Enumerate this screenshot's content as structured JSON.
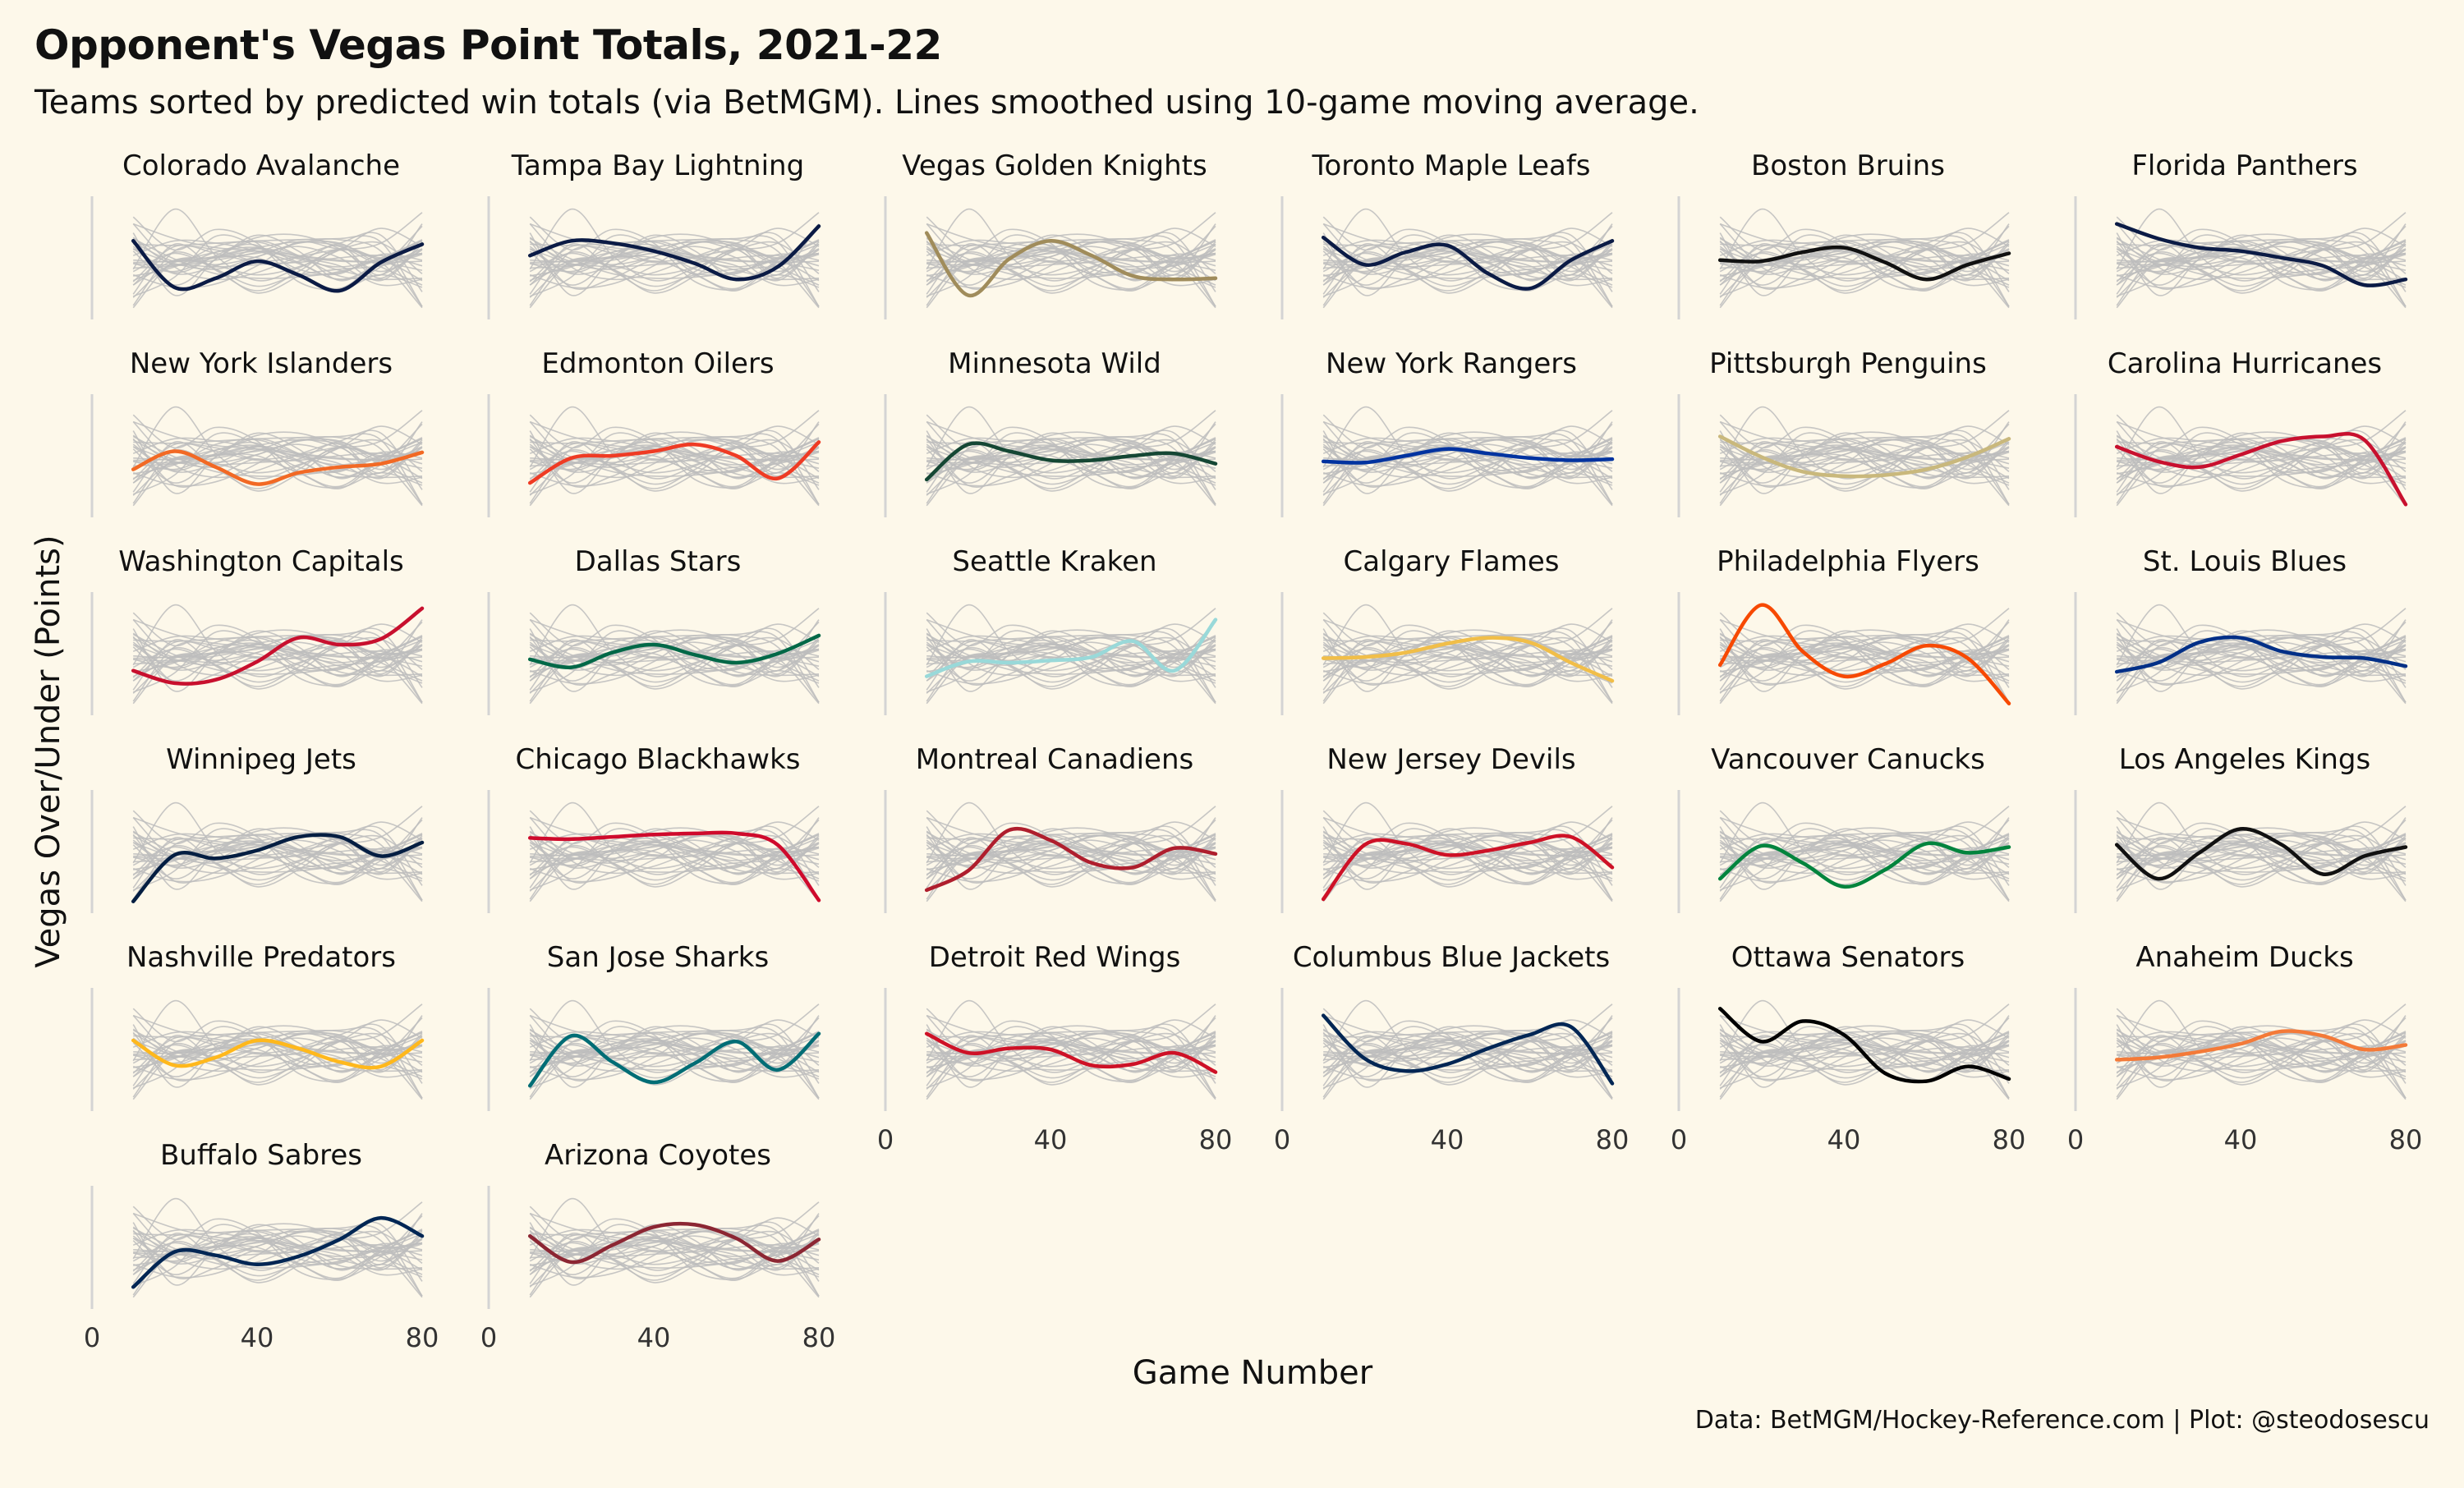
{
  "chart_data": {
    "type": "line",
    "title": "Opponent's Vegas Point Totals, 2021-22",
    "subtitle": "Teams sorted by predicted win totals (via BetMGM). Lines smoothed using 10-game moving average.",
    "xlabel": "Game Number",
    "ylabel": "Vegas Over/Under (Points)",
    "caption": "Data: BetMGM/Hockey-Reference.com | Plot: @steodosescu",
    "xlim": [
      0,
      82
    ],
    "ylim": [
      0,
      10
    ],
    "x_ticks": [
      0,
      40,
      80
    ],
    "x": [
      10,
      20,
      30,
      40,
      50,
      60,
      70,
      80
    ],
    "grid": false,
    "facets": [
      {
        "name": "Colorado Avalanche",
        "color": "#0b1b45",
        "values": [
          6.5,
          2.4,
          3.2,
          4.7,
          3.5,
          2.1,
          4.6,
          6.2
        ]
      },
      {
        "name": "Tampa Bay Lightning",
        "color": "#0b1b45",
        "values": [
          5.2,
          6.5,
          6.3,
          5.6,
          4.5,
          3.1,
          4.2,
          7.8
        ]
      },
      {
        "name": "Vegas Golden Knights",
        "color": "#a08c5b",
        "values": [
          7.2,
          1.7,
          4.9,
          6.5,
          5.2,
          3.4,
          3.1,
          3.2
        ]
      },
      {
        "name": "Toronto Maple Leafs",
        "color": "#0b1b45",
        "values": [
          6.8,
          4.4,
          5.5,
          6.1,
          3.6,
          2.3,
          4.8,
          6.5
        ]
      },
      {
        "name": "Boston Bruins",
        "color": "#111111",
        "values": [
          4.8,
          4.7,
          5.5,
          5.9,
          4.6,
          3.1,
          4.4,
          5.4
        ]
      },
      {
        "name": "Florida Panthers",
        "color": "#0b1b45",
        "values": [
          8.0,
          6.7,
          5.9,
          5.6,
          5.0,
          4.3,
          2.6,
          3.1
        ]
      },
      {
        "name": "New York Islanders",
        "color": "#f26924",
        "values": [
          3.8,
          5.4,
          4.0,
          2.5,
          3.5,
          4.0,
          4.3,
          5.3
        ]
      },
      {
        "name": "Edmonton Oilers",
        "color": "#ef3b24",
        "values": [
          2.6,
          4.8,
          5.0,
          5.4,
          6.0,
          5.0,
          3.0,
          6.2
        ]
      },
      {
        "name": "Minnesota Wild",
        "color": "#154734",
        "values": [
          2.9,
          6.0,
          5.4,
          4.6,
          4.6,
          5.0,
          5.2,
          4.3
        ]
      },
      {
        "name": "New York Rangers",
        "color": "#0033a0",
        "values": [
          4.5,
          4.4,
          5.0,
          5.6,
          5.2,
          4.8,
          4.6,
          4.7
        ]
      },
      {
        "name": "Pittsburgh Penguins",
        "color": "#c9b87c",
        "values": [
          6.7,
          4.9,
          3.6,
          3.2,
          3.3,
          3.8,
          4.9,
          6.5
        ]
      },
      {
        "name": "Carolina Hurricanes",
        "color": "#c8102e",
        "values": [
          5.8,
          4.5,
          4.0,
          5.1,
          6.3,
          6.7,
          6.4,
          0.7
        ]
      },
      {
        "name": "Washington Capitals",
        "color": "#c8102e",
        "values": [
          3.5,
          2.4,
          2.7,
          4.3,
          6.4,
          5.8,
          6.3,
          9.0
        ]
      },
      {
        "name": "Dallas Stars",
        "color": "#006847",
        "values": [
          4.5,
          3.8,
          5.1,
          5.8,
          4.9,
          4.2,
          5.0,
          6.6
        ]
      },
      {
        "name": "Seattle Kraken",
        "color": "#99d9d9",
        "values": [
          3.0,
          4.3,
          4.2,
          4.4,
          4.7,
          6.1,
          3.5,
          8.0
        ]
      },
      {
        "name": "Calgary Flames",
        "color": "#f1be48",
        "values": [
          4.6,
          4.7,
          5.1,
          5.9,
          6.4,
          6.0,
          4.2,
          2.6
        ]
      },
      {
        "name": "Philadelphia Flyers",
        "color": "#f74902",
        "values": [
          4.0,
          9.3,
          5.2,
          3.0,
          4.1,
          5.7,
          4.6,
          0.6
        ]
      },
      {
        "name": "St. Louis Blues",
        "color": "#002f87",
        "values": [
          3.4,
          4.2,
          6.0,
          6.4,
          5.2,
          4.7,
          4.6,
          3.9
        ]
      },
      {
        "name": "Winnipeg Jets",
        "color": "#041e42",
        "values": [
          0.6,
          4.7,
          4.4,
          5.1,
          6.3,
          6.3,
          4.6,
          5.8
        ]
      },
      {
        "name": "Chicago Blackhawks",
        "color": "#cf0a2c",
        "values": [
          6.2,
          6.1,
          6.3,
          6.5,
          6.6,
          6.6,
          5.6,
          0.7
        ]
      },
      {
        "name": "Montreal Canadiens",
        "color": "#af1e2d",
        "values": [
          1.6,
          3.3,
          6.9,
          6.0,
          4.0,
          3.6,
          5.3,
          4.8
        ]
      },
      {
        "name": "New Jersey Devils",
        "color": "#ce1126",
        "values": [
          0.8,
          5.6,
          5.7,
          4.7,
          5.1,
          5.8,
          6.3,
          3.6
        ]
      },
      {
        "name": "Vancouver Canucks",
        "color": "#00843d",
        "values": [
          2.6,
          5.5,
          4.0,
          1.9,
          3.4,
          5.7,
          4.9,
          5.4
        ]
      },
      {
        "name": "Los Angeles Kings",
        "color": "#111111",
        "values": [
          5.6,
          2.6,
          4.9,
          7.0,
          5.6,
          3.0,
          4.6,
          5.4
        ]
      },
      {
        "name": "Nashville Predators",
        "color": "#ffb81c",
        "values": [
          5.8,
          3.6,
          4.3,
          5.8,
          5.1,
          3.9,
          3.5,
          5.8
        ]
      },
      {
        "name": "San Jose Sharks",
        "color": "#006d75",
        "values": [
          1.8,
          6.2,
          3.9,
          2.1,
          3.8,
          5.7,
          3.2,
          6.4
        ]
      },
      {
        "name": "Detroit Red Wings",
        "color": "#ce1126",
        "values": [
          6.4,
          4.7,
          5.1,
          5.0,
          3.6,
          3.7,
          4.7,
          3.0
        ]
      },
      {
        "name": "Columbus Blue Jackets",
        "color": "#002654",
        "values": [
          8.0,
          4.2,
          3.1,
          3.7,
          5.1,
          6.3,
          7.0,
          2.0
        ]
      },
      {
        "name": "Ottawa Senators",
        "color": "#000000",
        "values": [
          8.6,
          5.7,
          7.5,
          6.3,
          2.9,
          2.2,
          3.5,
          2.4
        ]
      },
      {
        "name": "Anaheim Ducks",
        "color": "#f47a38",
        "values": [
          4.1,
          4.3,
          4.8,
          5.5,
          6.6,
          6.2,
          5.0,
          5.4
        ]
      },
      {
        "name": "Buffalo Sabres",
        "color": "#002654",
        "values": [
          1.5,
          4.6,
          4.3,
          3.5,
          4.2,
          5.7,
          7.6,
          6.0
        ]
      },
      {
        "name": "Arizona Coyotes",
        "color": "#8c2633",
        "values": [
          6.0,
          3.7,
          5.2,
          6.8,
          7.0,
          5.8,
          3.8,
          5.7
        ]
      }
    ]
  }
}
